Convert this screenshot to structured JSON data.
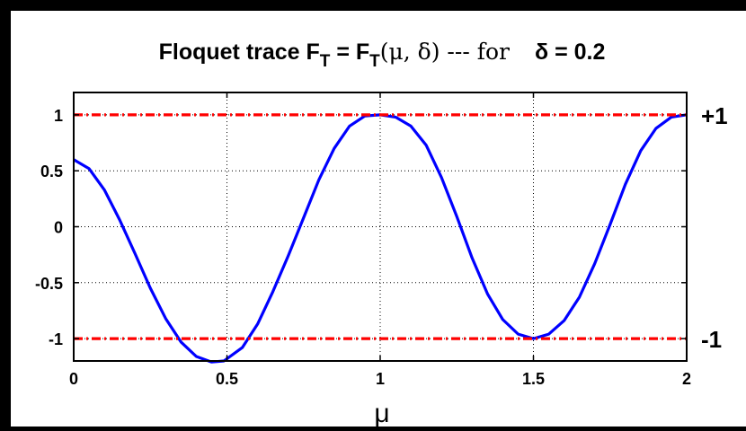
{
  "chart_data": {
    "type": "line",
    "title_prefix": "Floquet trace F",
    "title_sub": "T",
    "title_eq": " = F",
    "title_args": "(μ, δ) --- for",
    "title_param": "δ = 0.2",
    "xlabel": "μ",
    "ylabel": "",
    "xlim": [
      0,
      2
    ],
    "ylim": [
      -1.2,
      1.2
    ],
    "x_ticks": [
      0,
      0.5,
      1,
      1.5,
      2
    ],
    "x_tick_labels": [
      "0",
      "0.5",
      "1",
      "1.5",
      "2"
    ],
    "y_ticks": [
      1,
      0.5,
      0,
      -0.5,
      -1
    ],
    "y_tick_labels": [
      "1",
      "0.5",
      "0",
      "-0.5",
      "-1"
    ],
    "grid": true,
    "series": [
      {
        "color": "#0000ff",
        "style": "solid",
        "x": [
          0,
          0.05,
          0.1,
          0.15,
          0.2,
          0.25,
          0.3,
          0.35,
          0.4,
          0.45,
          0.49,
          0.55,
          0.6,
          0.65,
          0.7,
          0.75,
          0.8,
          0.85,
          0.9,
          0.95,
          1.0,
          1.05,
          1.1,
          1.15,
          1.2,
          1.25,
          1.3,
          1.35,
          1.4,
          1.45,
          1.5,
          1.55,
          1.6,
          1.65,
          1.7,
          1.75,
          1.8,
          1.85,
          1.9,
          1.95,
          2.0
        ],
        "y": [
          0.6,
          0.52,
          0.33,
          0.06,
          -0.24,
          -0.55,
          -0.82,
          -1.03,
          -1.16,
          -1.21,
          -1.2,
          -1.08,
          -0.87,
          -0.58,
          -0.26,
          0.08,
          0.42,
          0.7,
          0.9,
          0.99,
          1.0,
          0.98,
          0.9,
          0.73,
          0.44,
          0.09,
          -0.28,
          -0.6,
          -0.83,
          -0.96,
          -1.0,
          -0.96,
          -0.84,
          -0.63,
          -0.33,
          0.02,
          0.38,
          0.68,
          0.88,
          0.98,
          1.0
        ]
      },
      {
        "color": "#ff0000",
        "style": "dashdot",
        "x": [
          0,
          2
        ],
        "y": [
          1,
          1
        ]
      },
      {
        "color": "#ff0000",
        "style": "dashdot",
        "x": [
          0,
          2
        ],
        "y": [
          -1,
          -1
        ]
      }
    ],
    "annotations": [
      {
        "text": "+1",
        "y": 1
      },
      {
        "text": "-1",
        "y": -1
      }
    ]
  }
}
